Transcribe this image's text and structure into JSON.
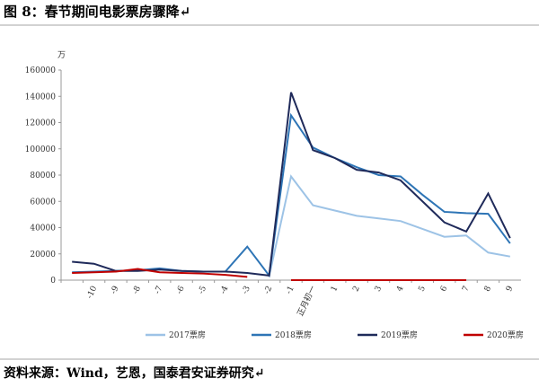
{
  "chart_data": {
    "type": "line",
    "title": "图 8：春节期间电影票房骤降↵",
    "y_unit": "万",
    "source": "资料来源：Wind，艺恩，国泰君安证券研究↵",
    "categories": [
      null,
      "-10",
      "-9",
      "-8",
      "-7",
      "-6",
      "-5",
      "-4",
      "-3",
      "-2",
      "-1",
      "正月初一",
      "1",
      "2",
      "3",
      "4",
      "5",
      "6",
      "7",
      "8",
      "9"
    ],
    "ylim": [
      0,
      160000
    ],
    "yticks": [
      0,
      20000,
      40000,
      60000,
      80000,
      100000,
      120000,
      140000,
      160000
    ],
    "grid": false,
    "legend": "bottom",
    "series": [
      {
        "name": "2017票房",
        "color": "#9dc3e6",
        "values": [
          null,
          null,
          null,
          null,
          null,
          null,
          null,
          null,
          null,
          3000,
          79000,
          57000,
          53000,
          49000,
          47000,
          45000,
          39000,
          33000,
          34000,
          21000,
          18000
        ]
      },
      {
        "name": "2018票房",
        "color": "#2e75b6",
        "values": [
          6000,
          6500,
          7000,
          7500,
          9000,
          7000,
          6500,
          6500,
          25500,
          3500,
          125500,
          101000,
          93000,
          86000,
          80000,
          79000,
          65000,
          52000,
          51000,
          50500,
          28000
        ]
      },
      {
        "name": "2019票房",
        "color": "#1f2a5a",
        "values": [
          14000,
          12500,
          7000,
          7000,
          8000,
          7000,
          6500,
          6500,
          5500,
          3500,
          143000,
          99000,
          93000,
          84000,
          82000,
          76000,
          60000,
          44000,
          37000,
          66000,
          32000
        ]
      },
      {
        "name": "2020票房",
        "color": "#c00000",
        "values": [
          5500,
          6000,
          6500,
          8500,
          6000,
          5500,
          5000,
          4000,
          2500,
          null,
          0,
          0,
          0,
          0,
          0,
          0,
          0,
          0,
          0,
          null,
          null
        ]
      }
    ]
  }
}
